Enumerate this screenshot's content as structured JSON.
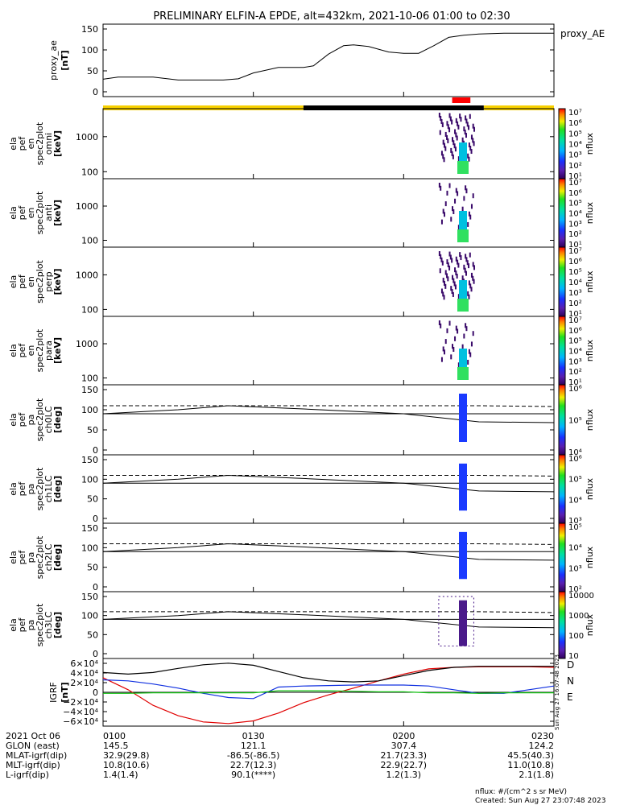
{
  "title": "PRELIMINARY ELFIN-A EPDE, alt=432km, 2021-10-06 01:00 to 02:30",
  "colors": {
    "science_zone": "#f7d000",
    "night_bar": "#000000",
    "red_marker": "#ff0000",
    "igrf_d": "#e00000",
    "igrf_n": "#1030e0",
    "igrf_e": "#10c010",
    "igrf_total": "#000000"
  },
  "panels": [
    {
      "id": "ae",
      "ylabel": [
        "proxy_ae",
        "[nT]"
      ],
      "ticks": [
        "150",
        "100",
        "50",
        "0"
      ],
      "right_label": "proxy_AE",
      "cb_ticks": [],
      "cb_label": ""
    },
    {
      "id": "omni",
      "ylabel": [
        "ela",
        "pef",
        "en",
        "spec2plot",
        "omni",
        "[keV]"
      ],
      "ticks": [
        "1000",
        "100"
      ],
      "right_label": "",
      "cb_ticks": [
        "10⁷",
        "10⁶",
        "10⁵",
        "10⁴",
        "10³",
        "10²",
        "10¹"
      ],
      "cb_label": "nflux"
    },
    {
      "id": "anti",
      "ylabel": [
        "ela",
        "pef",
        "en",
        "spec2plot",
        "anti",
        "[keV]"
      ],
      "ticks": [
        "1000",
        "100"
      ],
      "right_label": "",
      "cb_ticks": [
        "10⁷",
        "10⁶",
        "10⁵",
        "10⁴",
        "10³",
        "10²",
        "10¹"
      ],
      "cb_label": "nflux"
    },
    {
      "id": "perp",
      "ylabel": [
        "ela",
        "pef",
        "en",
        "spec2plot",
        "perp",
        "[keV]"
      ],
      "ticks": [
        "1000",
        "100"
      ],
      "right_label": "",
      "cb_ticks": [
        "10⁷",
        "10⁶",
        "10⁵",
        "10⁴",
        "10³",
        "10²",
        "10¹"
      ],
      "cb_label": "nflux"
    },
    {
      "id": "para",
      "ylabel": [
        "ela",
        "pef",
        "en",
        "spec2plot",
        "para",
        "[keV]"
      ],
      "ticks": [
        "1000",
        "100"
      ],
      "right_label": "",
      "cb_ticks": [
        "10⁷",
        "10⁶",
        "10⁵",
        "10⁴",
        "10³",
        "10²",
        "10¹"
      ],
      "cb_label": "nflux"
    },
    {
      "id": "ch0LC",
      "ylabel": [
        "ela",
        "pef",
        "pa",
        "spec2plot",
        "ch0LC",
        "[deg]"
      ],
      "ticks": [
        "150",
        "100",
        "50",
        "0"
      ],
      "right_label": "",
      "cb_ticks": [
        "10⁶",
        "10⁵",
        "10⁴"
      ],
      "cb_label": "nflux"
    },
    {
      "id": "ch1LC",
      "ylabel": [
        "ela",
        "pef",
        "pa",
        "spec2plot",
        "ch1LC",
        "[deg]"
      ],
      "ticks": [
        "150",
        "100",
        "50",
        "0"
      ],
      "right_label": "",
      "cb_ticks": [
        "10⁶",
        "10⁵",
        "10⁴",
        "10³"
      ],
      "cb_label": "nflux"
    },
    {
      "id": "ch2LC",
      "ylabel": [
        "ela",
        "pef",
        "pa",
        "spec2plot",
        "ch2LC",
        "[deg]"
      ],
      "ticks": [
        "150",
        "100",
        "50",
        "0"
      ],
      "right_label": "",
      "cb_ticks": [
        "10⁵",
        "10⁴",
        "10³",
        "10²"
      ],
      "cb_label": "nflux"
    },
    {
      "id": "ch3LC",
      "ylabel": [
        "ela",
        "pef",
        "pa",
        "spec2plot",
        "ch3LC",
        "[deg]"
      ],
      "ticks": [
        "150",
        "100",
        "50",
        "0"
      ],
      "right_label": "",
      "cb_ticks": [
        "10000",
        "1000",
        "100",
        "10"
      ],
      "cb_label": "nflux"
    },
    {
      "id": "igrf",
      "ylabel": [
        "IGRF",
        "[nT]"
      ],
      "ticks": [
        "6×10⁴",
        "4×10⁴",
        "2×10⁴",
        "0",
        "−2×10⁴",
        "−4×10⁴",
        "−6×10⁴"
      ],
      "right_label": "",
      "cb_ticks": [],
      "cb_label": ""
    }
  ],
  "igrf_legend": [
    "D",
    "N",
    "E"
  ],
  "side_stamp": "Sun Aug 27 16:07:48 2023",
  "x_axis": {
    "times": [
      "0100",
      "0130",
      "0200",
      "0230"
    ],
    "rows": [
      {
        "label": "2021 Oct 06",
        "values": [
          "0100",
          "0130",
          "0200",
          "0230"
        ]
      },
      {
        "label": "GLON (east)",
        "values": [
          "145.5",
          "121.1",
          "307.4",
          "124.2"
        ]
      },
      {
        "label": "MLAT-igrf(dip)",
        "values": [
          "32.9(29.8)",
          "-86.5(-86.5)",
          "21.7(23.3)",
          "45.5(40.3)"
        ]
      },
      {
        "label": "MLT-igrf(dip)",
        "values": [
          "10.8(10.6)",
          "22.7(12.3)",
          "22.9(22.7)",
          "11.0(10.8)"
        ]
      },
      {
        "label": "L-igrf(dip)",
        "values": [
          "1.4(1.4)",
          "90.1(****)",
          "1.2(1.3)",
          "2.1(1.8)"
        ]
      }
    ]
  },
  "footer": {
    "units": "nflux: #/(cm^2 s sr MeV)",
    "created": "Created: Sun Aug 27 23:07:48 2023"
  },
  "chart_data": {
    "type": "line",
    "time_range": [
      "01:00",
      "02:30"
    ],
    "proxy_ae": {
      "x": [
        "01:00",
        "01:03",
        "01:05",
        "01:10",
        "01:15",
        "01:20",
        "01:24",
        "01:27",
        "01:30",
        "01:35",
        "01:40",
        "01:42",
        "01:45",
        "01:48",
        "01:50",
        "01:53",
        "01:57",
        "02:00",
        "02:03",
        "02:06",
        "02:09",
        "02:12",
        "02:15",
        "02:20",
        "02:25",
        "02:30"
      ],
      "y": [
        30,
        35,
        35,
        35,
        28,
        28,
        28,
        31,
        45,
        58,
        58,
        62,
        90,
        110,
        112,
        108,
        95,
        92,
        92,
        110,
        130,
        135,
        138,
        140,
        140,
        140
      ],
      "ylim": [
        0,
        150
      ]
    },
    "science_zones": [
      {
        "start": "01:00",
        "end": "01:40",
        "color": "yellow"
      },
      {
        "start": "01:40",
        "end": "02:16",
        "color": "black"
      },
      {
        "start": "02:16",
        "end": "02:30",
        "color": "yellow"
      }
    ],
    "highlight_interval": {
      "start": "02:10",
      "end": "02:13"
    },
    "loss_cone": {
      "x": [
        "01:00",
        "01:15",
        "01:25",
        "01:40",
        "02:00",
        "02:15",
        "02:30"
      ],
      "solid": [
        90,
        100,
        110,
        102,
        90,
        70,
        68
      ],
      "dashed": [
        110,
        110,
        110,
        110,
        110,
        110,
        108
      ],
      "flat": [
        90,
        90,
        90,
        90,
        90,
        90,
        90
      ]
    },
    "igrf": {
      "x": [
        "01:00",
        "01:05",
        "01:10",
        "01:15",
        "01:20",
        "01:25",
        "01:30",
        "01:35",
        "01:40",
        "01:45",
        "01:50",
        "01:55",
        "02:00",
        "02:05",
        "02:10",
        "02:15",
        "02:20",
        "02:25",
        "02:30"
      ],
      "series": [
        {
          "name": "D",
          "values": [
            28000,
            5000,
            -25000,
            -45000,
            -57000,
            -60000,
            -55000,
            -40000,
            -20000,
            -5000,
            8000,
            22000,
            35000,
            45000,
            48000,
            49000,
            49000,
            49000,
            48000
          ]
        },
        {
          "name": "N",
          "values": [
            24000,
            22000,
            16000,
            8000,
            -2000,
            -10000,
            -12000,
            10000,
            12000,
            13000,
            14000,
            14000,
            14000,
            12000,
            5000,
            -2000,
            -2000,
            5000,
            12000
          ]
        },
        {
          "name": "E",
          "values": [
            -2000,
            -2000,
            -1000,
            -1000,
            -1000,
            -1000,
            -1000,
            3000,
            3000,
            3000,
            2000,
            1000,
            1000,
            -1000,
            -1000,
            -2000,
            -1000,
            -1000,
            -1000
          ]
        },
        {
          "name": "",
          "values": [
            38000,
            35000,
            38000,
            46000,
            53000,
            56000,
            52000,
            40000,
            28000,
            22000,
            20000,
            22000,
            32000,
            42000,
            48000,
            50000,
            50000,
            50000,
            50000
          ]
        }
      ],
      "ylim": [
        -65000,
        65000
      ]
    }
  }
}
